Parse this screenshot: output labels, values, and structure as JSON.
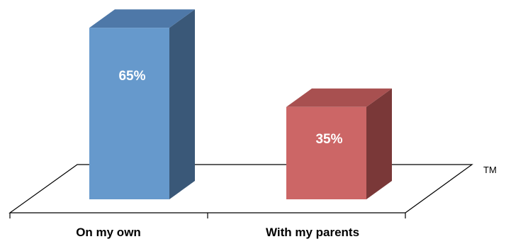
{
  "chart_data": {
    "type": "bar",
    "categories": [
      "On my own",
      "With my parents"
    ],
    "values": [
      65,
      35
    ],
    "data_labels": [
      "65%",
      "35%"
    ],
    "ylim": [
      0,
      100
    ],
    "grid": false,
    "legend": "none",
    "three_d": true,
    "colors": {
      "bars": [
        "#6699CC",
        "#CC6666"
      ],
      "bar_tops": [
        "#4E78A8",
        "#A85050"
      ],
      "bar_sides": [
        "#3A5878",
        "#7A3838"
      ]
    }
  },
  "trademark": "TM"
}
